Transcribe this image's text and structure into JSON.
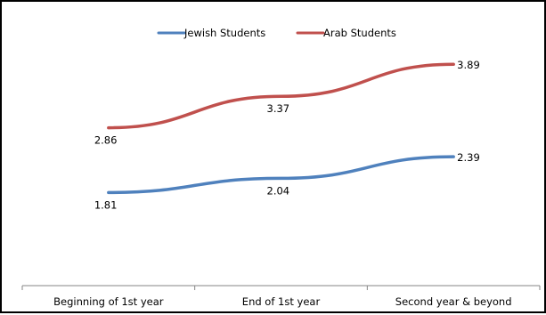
{
  "chart_data": {
    "type": "line",
    "categories": [
      "Beginning of 1st year",
      "End of 1st year",
      "Second year & beyond"
    ],
    "series": [
      {
        "name": "Jewish Students",
        "values": [
          1.81,
          2.04,
          2.39
        ],
        "labels": [
          "1.81",
          "2.04",
          "2.39"
        ],
        "color": "#4F81BD"
      },
      {
        "name": "Arab Students",
        "values": [
          2.86,
          3.37,
          3.89
        ],
        "labels": [
          "2.86",
          "3.37",
          "3.89"
        ],
        "color": "#C0504D"
      }
    ],
    "legend_position": "top-center",
    "grid": false
  },
  "colors": {
    "axis": "#868686",
    "frame": "#000000",
    "text": "#000000"
  }
}
